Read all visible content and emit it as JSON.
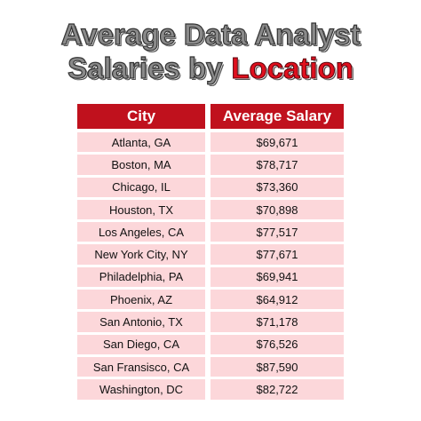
{
  "title": {
    "line1": "Average Data Analyst",
    "line2": "Salaries by",
    "highlight": "Location"
  },
  "table": {
    "header": [
      "City",
      "Average Salary"
    ],
    "rows": [
      [
        "Atlanta, GA",
        "$69,671"
      ],
      [
        "Boston, MA",
        "$78,717"
      ],
      [
        "Chicago, IL",
        "$73,360"
      ],
      [
        "Houston, TX",
        "$70,898"
      ],
      [
        "Los Angeles, CA",
        "$77,517"
      ],
      [
        "New York City, NY",
        "$77,671"
      ],
      [
        "Philadelphia, PA",
        "$69,941"
      ],
      [
        "Phoenix, AZ",
        "$64,912"
      ],
      [
        "San Antonio, TX",
        "$71,178"
      ],
      [
        "San Diego, CA",
        "$76,526"
      ],
      [
        "San Fransisco, CA",
        "$87,590"
      ],
      [
        "Washington, DC",
        "$82,722"
      ]
    ]
  }
}
